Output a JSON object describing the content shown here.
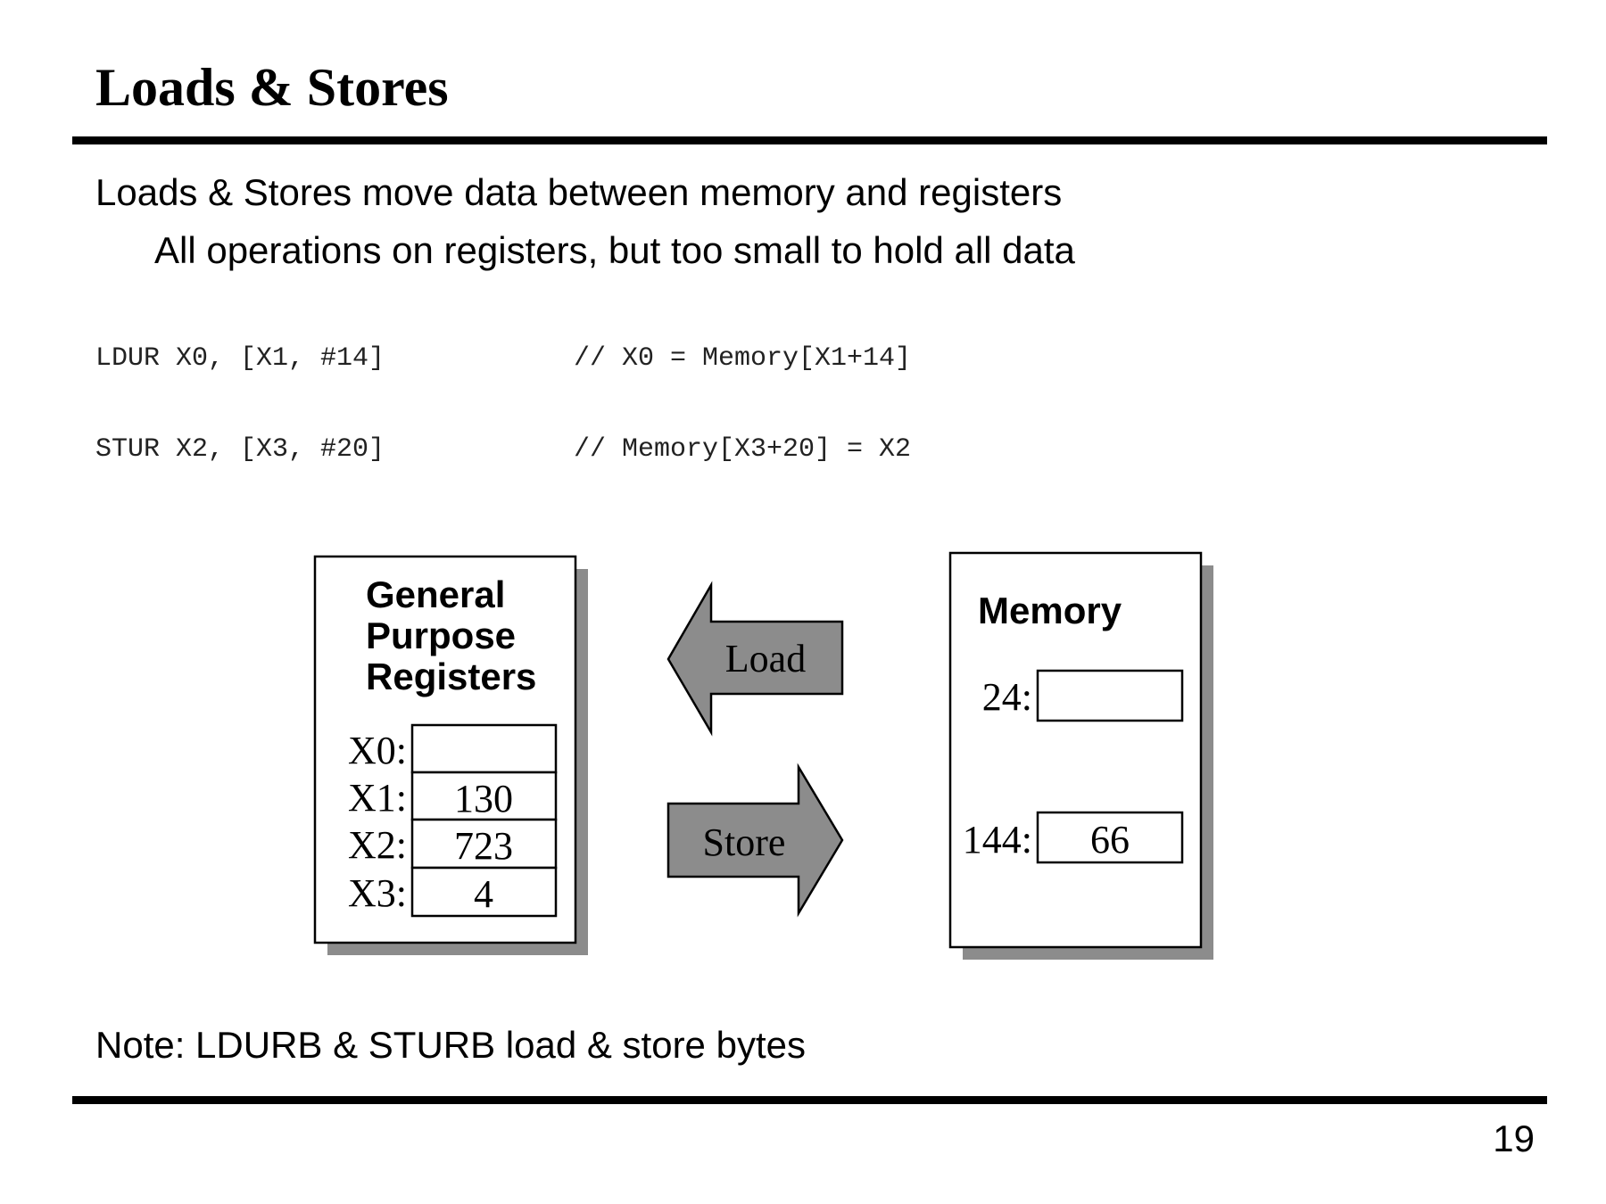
{
  "slide": {
    "title": "Loads & Stores",
    "bullet_main": "Loads & Stores move data between memory and registers",
    "bullet_sub": "All operations on registers, but too small to hold all data",
    "code": [
      {
        "instruction": "LDUR X0, [X1, #14]",
        "comment": "// X0 = Memory[X1+14]"
      },
      {
        "instruction": "STUR X2, [X3, #20]",
        "comment": "// Memory[X3+20] = X2"
      }
    ],
    "note": "Note: LDURB & STURB load & store bytes",
    "page_number": "19"
  },
  "diagram": {
    "registers_title_lines": [
      "General",
      "Purpose",
      "Registers"
    ],
    "registers": [
      {
        "label": "X0:",
        "value": ""
      },
      {
        "label": "X1:",
        "value": "130"
      },
      {
        "label": "X2:",
        "value": "723"
      },
      {
        "label": "X3:",
        "value": "4"
      }
    ],
    "load_label": "Load",
    "store_label": "Store",
    "memory_title": "Memory",
    "memory_cells": [
      {
        "address": "24:",
        "value": ""
      },
      {
        "address": "144:",
        "value": "66"
      }
    ],
    "colors": {
      "shadow": "#8c8c8c",
      "arrow_fill": "#8c8c8c",
      "stroke": "#000000",
      "box_fill": "#ffffff"
    }
  }
}
